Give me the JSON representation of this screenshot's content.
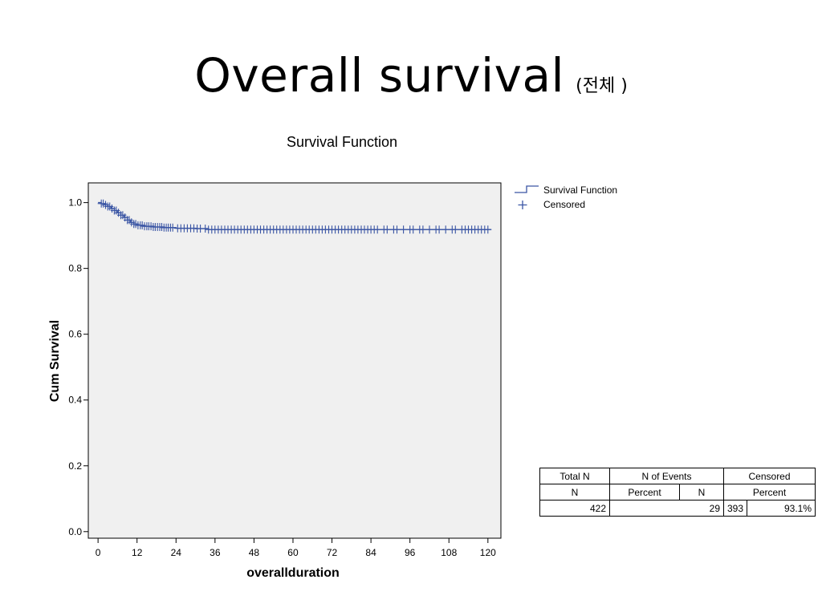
{
  "slide": {
    "title": "Overall survival",
    "subtitle": "(전체 )"
  },
  "chart_data": {
    "type": "line",
    "title": "Survival Function",
    "xlabel": "overallduration",
    "ylabel": "Cum Survival",
    "xlim": [
      -3,
      124
    ],
    "ylim": [
      -0.02,
      1.06
    ],
    "xticks": [
      0,
      12,
      24,
      36,
      48,
      60,
      72,
      84,
      96,
      108,
      120
    ],
    "yticks": [
      0.0,
      0.2,
      0.4,
      0.6,
      0.8,
      1.0
    ],
    "ytick_labels": [
      "0.0",
      "0.2",
      "0.4",
      "0.6",
      "0.8",
      "1.0"
    ],
    "grid": false,
    "legend_position": "outside-top-right",
    "series": [
      {
        "name": "Survival Function",
        "color": "#3a55a4",
        "step_points": [
          [
            0,
            1.0
          ],
          [
            1,
            0.997
          ],
          [
            2,
            0.993
          ],
          [
            3,
            0.988
          ],
          [
            4,
            0.982
          ],
          [
            5,
            0.976
          ],
          [
            6,
            0.969
          ],
          [
            7,
            0.962
          ],
          [
            8,
            0.955
          ],
          [
            9,
            0.947
          ],
          [
            10,
            0.94
          ],
          [
            11,
            0.935
          ],
          [
            12,
            0.931
          ],
          [
            14,
            0.928
          ],
          [
            17,
            0.926
          ],
          [
            20,
            0.924
          ],
          [
            24,
            0.922
          ],
          [
            30,
            0.921
          ],
          [
            34,
            0.918
          ],
          [
            121,
            0.918
          ]
        ]
      }
    ],
    "censored": {
      "name": "Censored",
      "x": [
        1,
        1.6,
        2.3,
        3,
        3.6,
        4.3,
        5,
        5.6,
        6.3,
        7,
        7.6,
        8.3,
        9,
        9.6,
        10.3,
        11,
        11.6,
        12.3,
        13,
        13.6,
        14.3,
        15,
        15.6,
        16.3,
        17,
        17.6,
        18.3,
        19,
        19.6,
        20.3,
        21,
        21.6,
        22.3,
        23,
        24.5,
        25.5,
        26.5,
        27.5,
        28.5,
        29.5,
        30.5,
        31.5,
        33,
        34,
        35,
        36,
        37,
        38,
        39,
        40,
        41,
        42,
        43,
        44,
        45,
        46,
        47,
        48,
        49,
        50,
        51,
        52,
        53,
        54,
        55,
        56,
        57,
        58,
        59,
        60,
        61,
        62,
        63,
        64,
        65,
        66,
        67,
        68,
        69,
        70,
        71,
        72,
        73,
        74,
        75,
        76,
        77,
        78,
        79,
        80,
        81,
        82,
        83,
        84,
        85,
        86,
        88,
        89,
        91,
        92,
        94,
        96,
        97,
        99,
        100,
        102,
        104,
        105,
        107,
        109,
        110,
        112,
        113,
        114,
        115,
        116,
        117,
        118,
        119,
        120
      ]
    }
  },
  "legend": {
    "items": [
      {
        "label": "Survival Function",
        "symbol": "step-line"
      },
      {
        "label": "Censored",
        "symbol": "plus"
      }
    ]
  },
  "table": {
    "headers": {
      "total_n": "Total N",
      "n_events": "N of Events",
      "censored": "Censored"
    },
    "subheaders": {
      "n": "N",
      "percent": "Percent",
      "n2": "N",
      "percent2": "Percent"
    },
    "values": {
      "total_n": "422",
      "n_events": "29",
      "censored_n": "393",
      "censored_percent": "93.1%"
    }
  }
}
